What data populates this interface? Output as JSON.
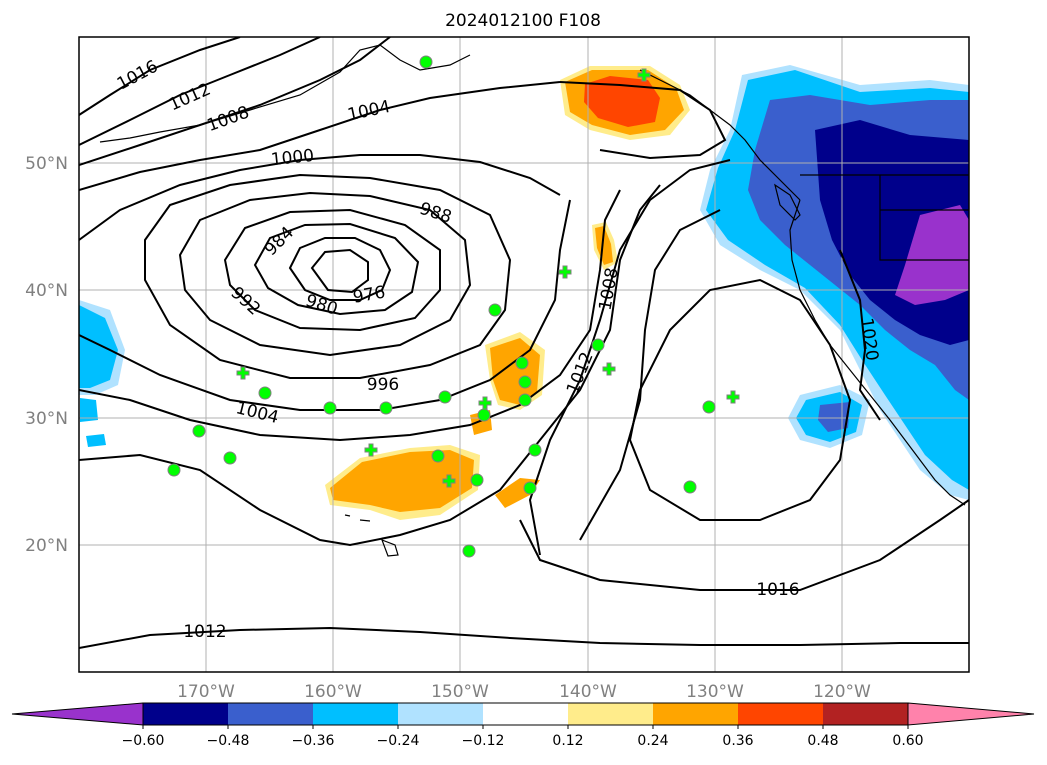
{
  "title": "2024012100 F108",
  "lat_labels": [
    "50°N",
    "40°N",
    "30°N",
    "20°N"
  ],
  "lon_labels": [
    "170°W",
    "160°W",
    "150°W",
    "140°W",
    "130°W",
    "120°W"
  ],
  "isobars": [
    {
      "value": "1016"
    },
    {
      "value": "1012"
    },
    {
      "value": "1008"
    },
    {
      "value": "1004"
    },
    {
      "value": "1000"
    },
    {
      "value": "988"
    },
    {
      "value": "984"
    },
    {
      "value": "980"
    },
    {
      "value": "976"
    },
    {
      "value": "992"
    },
    {
      "value": "996"
    },
    {
      "value": "1004"
    },
    {
      "value": "1008"
    },
    {
      "value": "1012"
    },
    {
      "value": "1020"
    },
    {
      "value": "1016"
    },
    {
      "value": "1012"
    }
  ],
  "colorbar": {
    "ticks": [
      "−0.60",
      "−0.48",
      "−0.36",
      "−0.24",
      "−0.12",
      "0.12",
      "0.24",
      "0.36",
      "0.48",
      "0.60"
    ],
    "colors": [
      "#9932cc",
      "#00008b",
      "#3a5fcd",
      "#00bfff",
      "#b0e2ff",
      "#ffffff",
      "#ffec8b",
      "#ffa500",
      "#ff4500",
      "#b22222",
      "#ff82ab"
    ]
  },
  "colors": {
    "station_marker": "#00ff00",
    "marker_edge": "#808080"
  }
}
